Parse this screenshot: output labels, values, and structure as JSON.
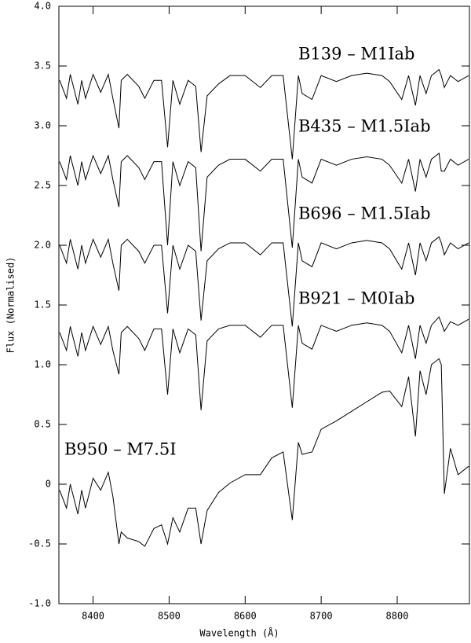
{
  "chart_data": {
    "type": "line",
    "x_label": "Wavelength (Å)",
    "y_label": "Flux (Normalised)",
    "xlim": [
      8355,
      8895
    ],
    "ylim": [
      -1.0,
      4.0
    ],
    "xticks": [
      8400,
      8500,
      8600,
      8700,
      8800
    ],
    "yticks": [
      {
        "value": -1.0,
        "label": "-1.0"
      },
      -0.5,
      0,
      0.5,
      {
        "value": 1.0,
        "label": "1.0"
      },
      1.5,
      {
        "value": 2.0,
        "label": "2.0"
      },
      2.5,
      {
        "value": 3.0,
        "label": "3.0"
      },
      3.5,
      {
        "value": 4.0,
        "label": "4.0"
      }
    ],
    "grid": false,
    "x": [
      8356,
      8365,
      8370,
      8380,
      8385,
      8390,
      8400,
      8410,
      8420,
      8426,
      8434,
      8437,
      8445,
      8460,
      8468,
      8480,
      8490,
      8498,
      8505,
      8514,
      8525,
      8535,
      8542,
      8550,
      8565,
      8580,
      8600,
      8620,
      8635,
      8650,
      8662,
      8670,
      8675,
      8688,
      8700,
      8720,
      8740,
      8760,
      8780,
      8790,
      8806,
      8815,
      8824,
      8830,
      8838,
      8845,
      8855,
      8858,
      8862,
      8870,
      8880,
      8894
    ],
    "series": [
      {
        "name": "B139 – M1Iab",
        "color": "#000000",
        "values": [
          3.38,
          3.23,
          3.43,
          3.18,
          3.38,
          3.23,
          3.43,
          3.28,
          3.43,
          3.23,
          2.98,
          3.38,
          3.43,
          3.33,
          3.23,
          3.38,
          3.38,
          2.82,
          3.38,
          3.18,
          3.38,
          3.33,
          2.78,
          3.25,
          3.35,
          3.42,
          3.42,
          3.32,
          3.42,
          3.42,
          2.72,
          3.42,
          3.27,
          3.22,
          3.42,
          3.37,
          3.42,
          3.44,
          3.42,
          3.37,
          3.22,
          3.42,
          3.17,
          3.42,
          3.27,
          3.42,
          3.47,
          3.42,
          3.32,
          3.42,
          3.37,
          3.42
        ]
      },
      {
        "name": "B435 – M1.5Iab",
        "color": "#000000",
        "values": [
          2.7,
          2.55,
          2.75,
          2.5,
          2.7,
          2.55,
          2.75,
          2.6,
          2.75,
          2.55,
          2.32,
          2.7,
          2.75,
          2.65,
          2.55,
          2.7,
          2.7,
          2.0,
          2.7,
          2.5,
          2.7,
          2.65,
          1.95,
          2.57,
          2.67,
          2.72,
          2.72,
          2.62,
          2.72,
          2.72,
          1.98,
          2.72,
          2.57,
          2.52,
          2.72,
          2.67,
          2.72,
          2.74,
          2.72,
          2.67,
          2.52,
          2.72,
          2.45,
          2.72,
          2.57,
          2.72,
          2.77,
          2.62,
          2.62,
          2.72,
          2.67,
          2.72
        ]
      },
      {
        "name": "B696 – M1.5Iab",
        "color": "#000000",
        "values": [
          2.0,
          1.85,
          2.05,
          1.8,
          2.0,
          1.85,
          2.05,
          1.9,
          2.05,
          1.85,
          1.62,
          2.0,
          2.05,
          1.95,
          1.85,
          2.0,
          2.0,
          1.43,
          2.0,
          1.8,
          2.0,
          1.95,
          1.37,
          1.87,
          1.97,
          2.02,
          2.02,
          1.92,
          2.02,
          2.02,
          1.32,
          2.02,
          1.87,
          1.82,
          2.02,
          1.97,
          2.02,
          2.04,
          2.02,
          1.97,
          1.8,
          2.02,
          1.75,
          2.02,
          1.87,
          2.02,
          2.07,
          2.02,
          1.92,
          2.02,
          1.97,
          2.02
        ]
      },
      {
        "name": "B921 – M0Iab",
        "color": "#000000",
        "values": [
          1.27,
          1.12,
          1.32,
          1.07,
          1.27,
          1.12,
          1.32,
          1.17,
          1.32,
          1.12,
          0.92,
          1.27,
          1.32,
          1.22,
          1.12,
          1.3,
          1.3,
          0.75,
          1.3,
          1.1,
          1.3,
          1.25,
          0.62,
          1.2,
          1.3,
          1.33,
          1.33,
          1.23,
          1.33,
          1.33,
          0.64,
          1.33,
          1.18,
          1.13,
          1.33,
          1.28,
          1.33,
          1.35,
          1.33,
          1.28,
          1.1,
          1.33,
          1.05,
          1.33,
          1.18,
          1.33,
          1.4,
          1.35,
          1.28,
          1.36,
          1.33,
          1.38
        ]
      },
      {
        "name": "B950 – M7.5I",
        "color": "#000000",
        "values": [
          -0.05,
          -0.2,
          0.0,
          -0.25,
          -0.05,
          -0.2,
          0.05,
          -0.05,
          0.1,
          -0.1,
          -0.5,
          -0.4,
          -0.45,
          -0.48,
          -0.52,
          -0.37,
          -0.34,
          -0.5,
          -0.28,
          -0.4,
          -0.2,
          -0.2,
          -0.5,
          -0.22,
          -0.07,
          0.01,
          0.08,
          0.08,
          0.22,
          0.27,
          -0.3,
          0.35,
          0.25,
          0.27,
          0.46,
          0.53,
          0.61,
          0.69,
          0.77,
          0.78,
          0.65,
          0.9,
          0.4,
          0.95,
          0.75,
          1.0,
          1.05,
          1.0,
          -0.08,
          0.3,
          0.08,
          0.15
        ]
      }
    ]
  }
}
